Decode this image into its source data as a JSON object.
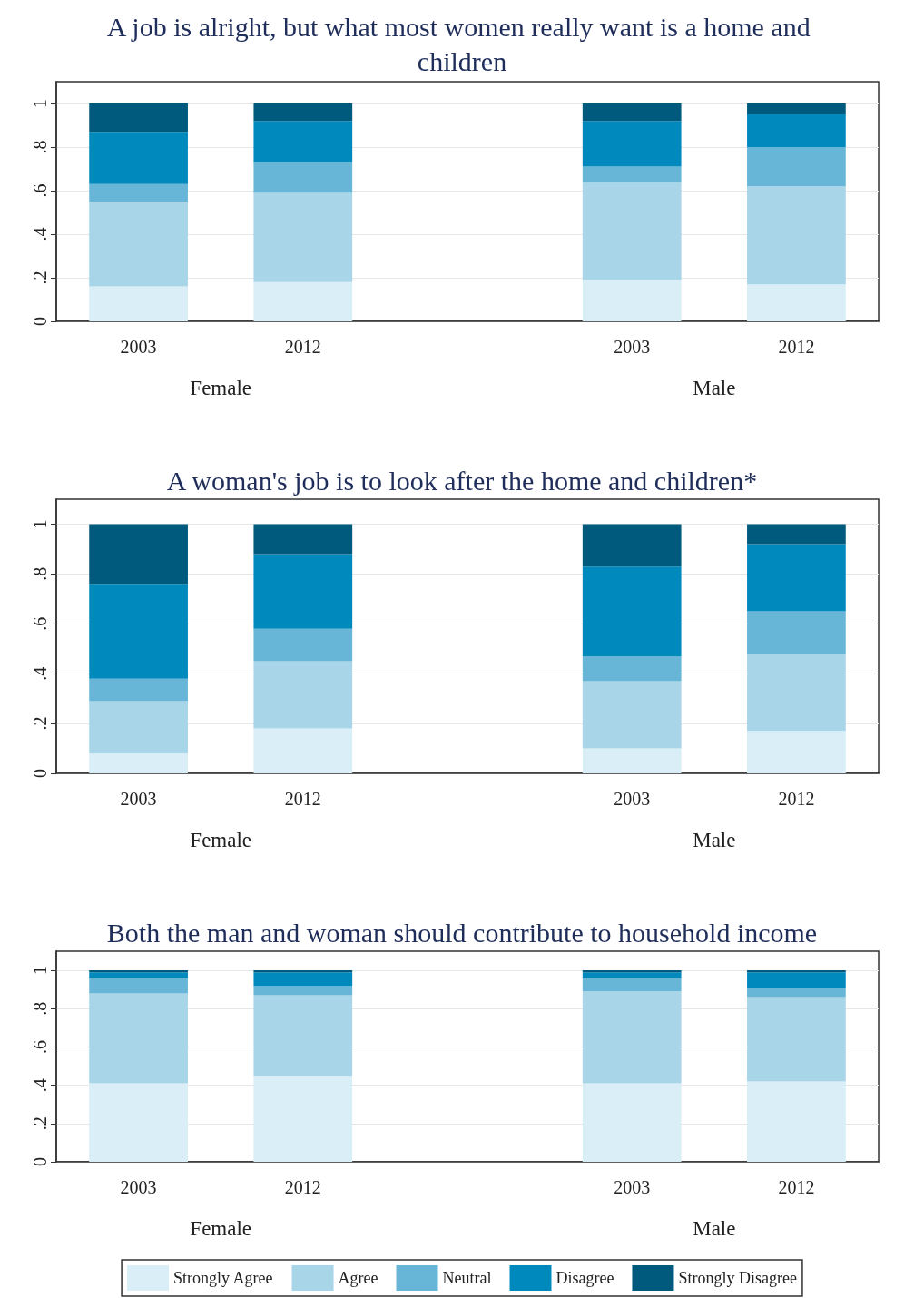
{
  "chart_data": [
    {
      "type": "bar",
      "title": "A job is alright, but what most women really want is a home and children",
      "categories": [
        "2003",
        "2012",
        null,
        "2003",
        "2012"
      ],
      "stacked": true,
      "ylim": [
        0,
        1.1
      ],
      "yticks": [
        {
          "value": 0,
          "label": "0"
        },
        {
          "value": 0.2,
          "label": ".2"
        },
        {
          "value": 0.4,
          "label": ".4"
        },
        {
          "value": 0.6,
          "label": ".6"
        },
        {
          "value": 0.8,
          "label": ".8"
        },
        {
          "value": 1,
          "label": "1"
        }
      ],
      "grid": "y",
      "legend": false,
      "annotations": [
        "Female",
        "Male"
      ],
      "series": [
        {
          "color": "#d9eef6",
          "values": [
            0.16,
            0.18,
            null,
            0.19,
            0.17
          ]
        },
        {
          "color": "#a8d5e8",
          "values": [
            0.39,
            0.41,
            null,
            0.45,
            0.45
          ]
        },
        {
          "color": "#67b6d7",
          "values": [
            0.08,
            0.14,
            null,
            0.07,
            0.18
          ]
        },
        {
          "color": "#0089bd",
          "values": [
            0.24,
            0.19,
            null,
            0.21,
            0.15
          ]
        },
        {
          "color": "#005a7e",
          "values": [
            0.13,
            0.08,
            null,
            0.08,
            0.05
          ]
        }
      ]
    },
    {
      "type": "bar",
      "title": "A woman's job is to look after the home and children*",
      "categories": [
        "2003",
        "2012",
        null,
        "2003",
        "2012"
      ],
      "stacked": true,
      "ylim": [
        0,
        1.1
      ],
      "yticks": [
        {
          "value": 0,
          "label": "0"
        },
        {
          "value": 0.2,
          "label": ".2"
        },
        {
          "value": 0.4,
          "label": ".4"
        },
        {
          "value": 0.6,
          "label": ".6"
        },
        {
          "value": 0.8,
          "label": ".8"
        },
        {
          "value": 1,
          "label": "1"
        }
      ],
      "grid": "y",
      "legend": false,
      "annotations": [
        "Female",
        "Male"
      ],
      "series": [
        {
          "color": "#d9eef6",
          "values": [
            0.08,
            0.18,
            null,
            0.1,
            0.17
          ]
        },
        {
          "color": "#a8d5e8",
          "values": [
            0.21,
            0.27,
            null,
            0.27,
            0.31
          ]
        },
        {
          "color": "#67b6d7",
          "values": [
            0.09,
            0.13,
            null,
            0.1,
            0.17
          ]
        },
        {
          "color": "#0089bd",
          "values": [
            0.38,
            0.3,
            null,
            0.36,
            0.27
          ]
        },
        {
          "color": "#005a7e",
          "values": [
            0.24,
            0.12,
            null,
            0.17,
            0.08
          ]
        }
      ]
    },
    {
      "type": "bar",
      "title": "Both the man and woman should contribute to household income",
      "categories": [
        "2003",
        "2012",
        null,
        "2003",
        "2012"
      ],
      "stacked": true,
      "ylim": [
        0,
        1.1
      ],
      "yticks": [
        {
          "value": 0,
          "label": "0"
        },
        {
          "value": 0.2,
          "label": ".2"
        },
        {
          "value": 0.4,
          "label": ".4"
        },
        {
          "value": 0.6,
          "label": ".6"
        },
        {
          "value": 0.8,
          "label": ".8"
        },
        {
          "value": 1,
          "label": "1"
        }
      ],
      "grid": "y",
      "legend": "bottom",
      "annotations": [
        "Female",
        "Male"
      ],
      "series": [
        {
          "name": "Strongly Agree",
          "color": "#d9eef6",
          "values": [
            0.41,
            0.45,
            null,
            0.41,
            0.42
          ]
        },
        {
          "name": "Agree",
          "color": "#a8d5e8",
          "values": [
            0.47,
            0.42,
            null,
            0.48,
            0.44
          ]
        },
        {
          "name": "Neutral",
          "color": "#67b6d7",
          "values": [
            0.08,
            0.05,
            null,
            0.07,
            0.05
          ]
        },
        {
          "name": "Disagree",
          "color": "#0089bd",
          "values": [
            0.03,
            0.07,
            null,
            0.03,
            0.08
          ]
        },
        {
          "name": "Strongly Disagree",
          "color": "#005a7e",
          "values": [
            0.01,
            0.01,
            null,
            0.01,
            0.01
          ]
        }
      ]
    }
  ]
}
